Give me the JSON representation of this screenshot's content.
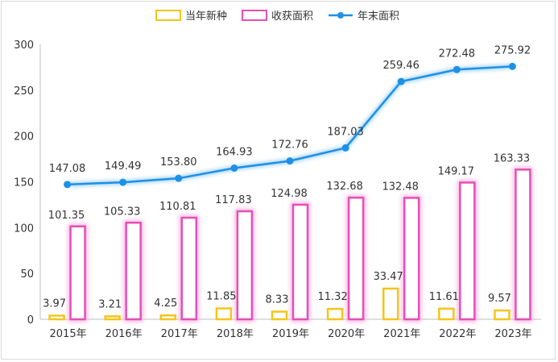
{
  "chart_data": {
    "type": "bar",
    "categories": [
      "2015年",
      "2016年",
      "2017年",
      "2018年",
      "2019年",
      "2020年",
      "2021年",
      "2022年",
      "2023年"
    ],
    "series": [
      {
        "name": "当年新种",
        "type": "bar",
        "color": "#f5c518",
        "values": [
          3.97,
          3.21,
          4.25,
          11.85,
          8.33,
          11.32,
          33.47,
          11.61,
          9.57
        ]
      },
      {
        "name": "收获面积",
        "type": "bar",
        "color": "#e64fb4",
        "values": [
          101.35,
          105.33,
          110.81,
          117.83,
          124.98,
          132.68,
          132.48,
          149.17,
          163.33
        ]
      },
      {
        "name": "年末面积",
        "type": "line",
        "color": "#1e90e6",
        "values": [
          147.08,
          149.49,
          153.8,
          164.93,
          172.76,
          187.03,
          259.46,
          272.48,
          275.92
        ]
      }
    ],
    "data_labels": {
      "当年新种": [
        "3.97",
        "3.21",
        "4.25",
        "11.85",
        "8.33",
        "11.32",
        "33.47",
        "11.61",
        "9.57"
      ],
      "收获面积": [
        "101.35",
        "105.33",
        "110.81",
        "117.83",
        "124.98",
        "132.68",
        "132.48",
        "149.17",
        "163.33"
      ],
      "年末面积": [
        "147.08",
        "149.49",
        "153.80",
        "164.93",
        "172.76",
        "187.03",
        "259.46",
        "272.48",
        "275.92"
      ]
    },
    "ylim": [
      0,
      300
    ],
    "yticks": [
      "0",
      "50",
      "100",
      "150",
      "200",
      "250",
      "300"
    ],
    "legend_position": "top-center",
    "grid": false,
    "title": "",
    "xlabel": "",
    "ylabel": ""
  }
}
